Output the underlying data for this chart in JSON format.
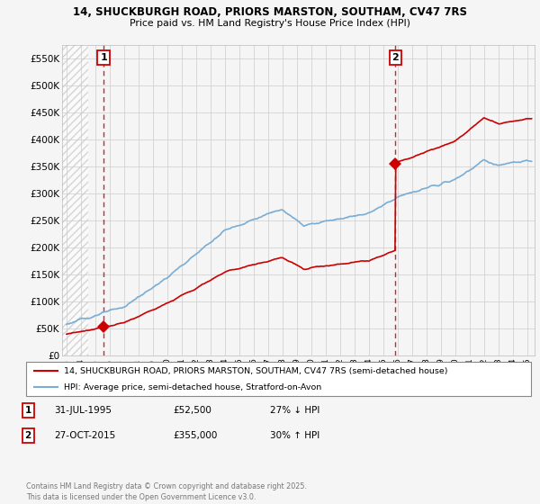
{
  "title_line1": "14, SHUCKBURGH ROAD, PRIORS MARSTON, SOUTHAM, CV47 7RS",
  "title_line2": "Price paid vs. HM Land Registry's House Price Index (HPI)",
  "ylabel_ticks": [
    "£0",
    "£50K",
    "£100K",
    "£150K",
    "£200K",
    "£250K",
    "£300K",
    "£350K",
    "£400K",
    "£450K",
    "£500K",
    "£550K"
  ],
  "ytick_values": [
    0,
    50000,
    100000,
    150000,
    200000,
    250000,
    300000,
    350000,
    400000,
    450000,
    500000,
    550000
  ],
  "ylim": [
    0,
    575000
  ],
  "xlim_start": 1992.7,
  "xlim_end": 2025.5,
  "xtick_years": [
    1993,
    1994,
    1995,
    1996,
    1997,
    1998,
    1999,
    2000,
    2001,
    2002,
    2003,
    2004,
    2005,
    2006,
    2007,
    2008,
    2009,
    2010,
    2011,
    2012,
    2013,
    2014,
    2015,
    2016,
    2017,
    2018,
    2019,
    2020,
    2021,
    2022,
    2023,
    2024,
    2025
  ],
  "property_color": "#cc0000",
  "hpi_color": "#7aadd4",
  "grid_color": "#cccccc",
  "background_color": "#f5f5f5",
  "plot_bg_color": "#f5f5f5",
  "sale1_x": 1995.58,
  "sale1_y": 52500,
  "sale2_x": 2015.83,
  "sale2_y": 355000,
  "legend_property": "14, SHUCKBURGH ROAD, PRIORS MARSTON, SOUTHAM, CV47 7RS (semi-detached house)",
  "legend_hpi": "HPI: Average price, semi-detached house, Stratford-on-Avon",
  "table_row1": [
    "1",
    "31-JUL-1995",
    "£52,500",
    "27% ↓ HPI"
  ],
  "table_row2": [
    "2",
    "27-OCT-2015",
    "£355,000",
    "30% ↑ HPI"
  ],
  "footer": "Contains HM Land Registry data © Crown copyright and database right 2025.\nThis data is licensed under the Open Government Licence v3.0.",
  "fig_width": 6.0,
  "fig_height": 5.6,
  "dpi": 100
}
